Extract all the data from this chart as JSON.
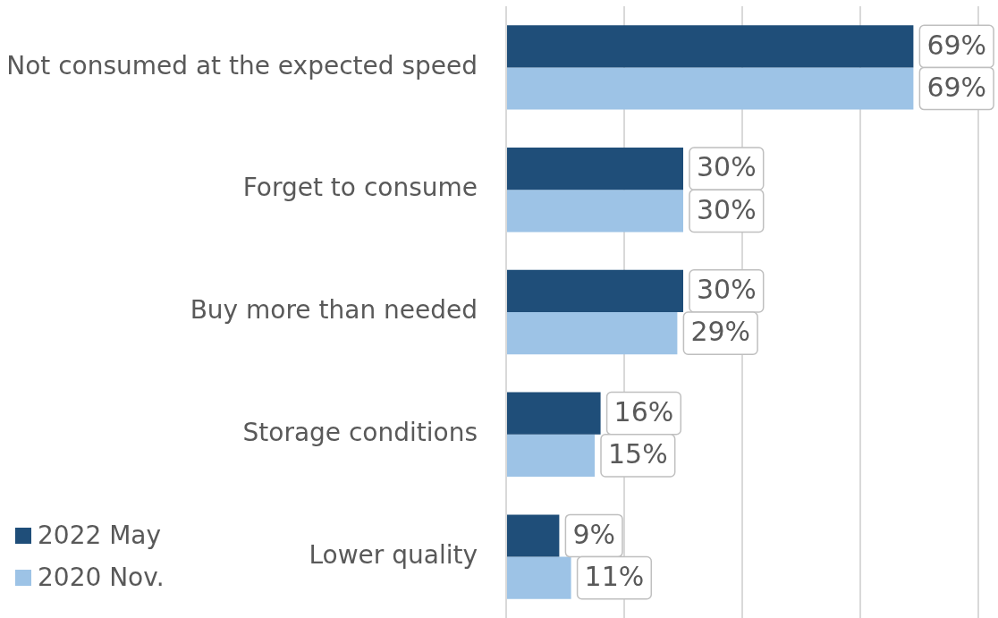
{
  "chart_data": {
    "type": "bar",
    "orientation": "horizontal",
    "categories": [
      "Not consumed at the expected speed",
      "Forget to consume",
      "Buy more than needed",
      "Storage conditions",
      "Lower quality"
    ],
    "series": [
      {
        "name": "2022 May",
        "color": "#1f4e79",
        "values": [
          69,
          30,
          30,
          16,
          9
        ],
        "value_labels": [
          "69%",
          "30%",
          "30%",
          "16%",
          "9%"
        ]
      },
      {
        "name": "2020 Nov.",
        "color": "#9dc3e6",
        "values": [
          69,
          30,
          29,
          15,
          11
        ],
        "value_labels": [
          "69%",
          "30%",
          "29%",
          "15%",
          "11%"
        ]
      }
    ],
    "xlim": [
      0,
      80
    ],
    "xticks": [
      {
        "value": 0,
        "label": null
      },
      {
        "value": 20,
        "label": null
      },
      {
        "value": 40,
        "label": null
      },
      {
        "value": 60,
        "label": null
      },
      {
        "value": 80,
        "label": null
      }
    ],
    "grid": "x",
    "tick_labels": "y",
    "legend": "bottom left"
  }
}
